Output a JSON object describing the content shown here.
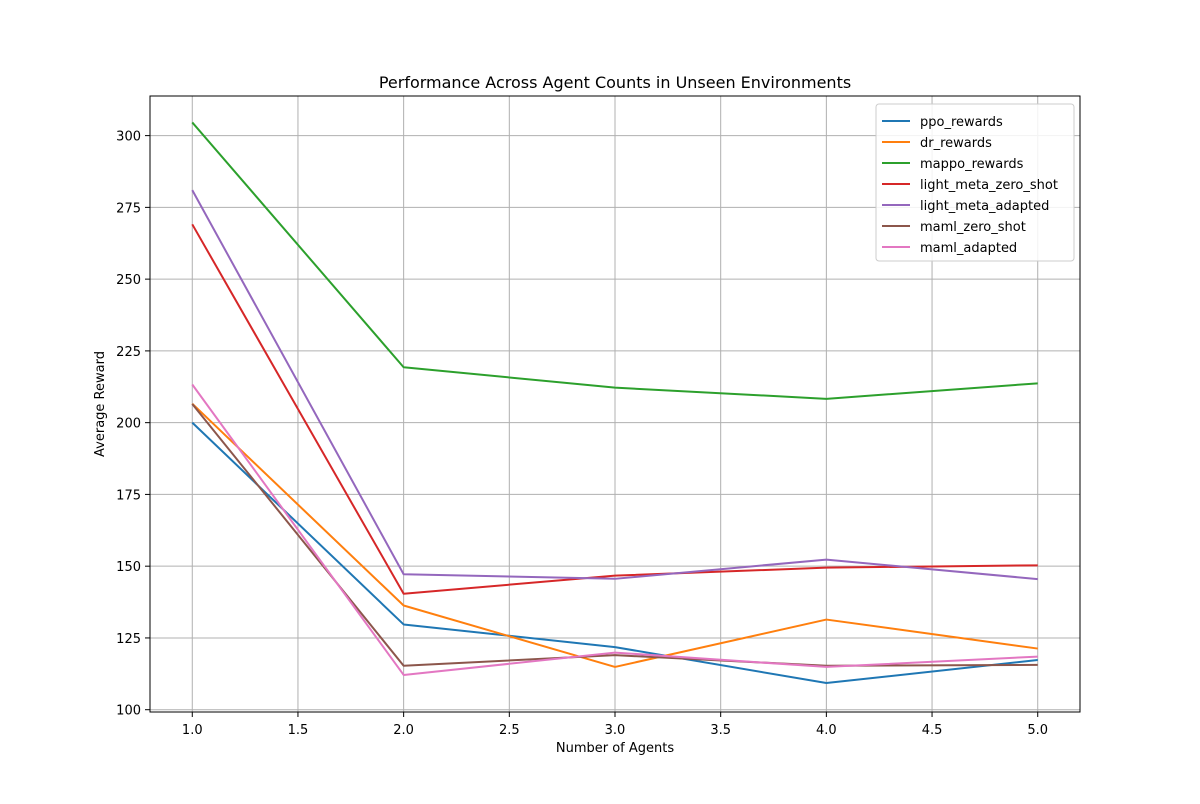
{
  "chart_data": {
    "type": "line",
    "title": "Performance Across Agent Counts in Unseen Environments",
    "xlabel": "Number of Agents",
    "ylabel": "Average Reward",
    "x": [
      1.0,
      2.0,
      3.0,
      4.0,
      5.0
    ],
    "xlim": [
      0.8,
      5.2
    ],
    "ylim": [
      99.2,
      313.8
    ],
    "xticks": [
      1.0,
      1.5,
      2.0,
      2.5,
      3.0,
      3.5,
      4.0,
      4.5,
      5.0
    ],
    "xtick_labels": [
      "1.0",
      "1.5",
      "2.0",
      "2.5",
      "3.0",
      "3.5",
      "4.0",
      "4.5",
      "5.0"
    ],
    "yticks": [
      100,
      125,
      150,
      175,
      200,
      225,
      250,
      275,
      300
    ],
    "ytick_labels": [
      "100",
      "125",
      "150",
      "175",
      "200",
      "225",
      "250",
      "275",
      "300"
    ],
    "grid": true,
    "legend_position": "top-right",
    "series": [
      {
        "name": "ppo_rewards",
        "color": "#1f77b4",
        "values": [
          200.0,
          129.7,
          121.8,
          109.3,
          117.3
        ]
      },
      {
        "name": "dr_rewards",
        "color": "#ff7f0e",
        "values": [
          206.6,
          136.3,
          114.9,
          131.4,
          121.3
        ]
      },
      {
        "name": "mappo_rewards",
        "color": "#2ca02c",
        "values": [
          304.6,
          219.3,
          212.2,
          208.3,
          213.7
        ]
      },
      {
        "name": "light_meta_zero_shot",
        "color": "#d62728",
        "values": [
          269.1,
          140.4,
          146.7,
          149.5,
          150.3
        ]
      },
      {
        "name": "light_meta_adapted",
        "color": "#9467bd",
        "values": [
          281.0,
          147.2,
          145.6,
          152.3,
          145.5
        ]
      },
      {
        "name": "maml_zero_shot",
        "color": "#8c564b",
        "values": [
          206.5,
          115.3,
          119.0,
          115.3,
          115.6
        ]
      },
      {
        "name": "maml_adapted",
        "color": "#e377c2",
        "values": [
          213.3,
          112.1,
          119.9,
          114.9,
          118.5
        ]
      }
    ]
  }
}
